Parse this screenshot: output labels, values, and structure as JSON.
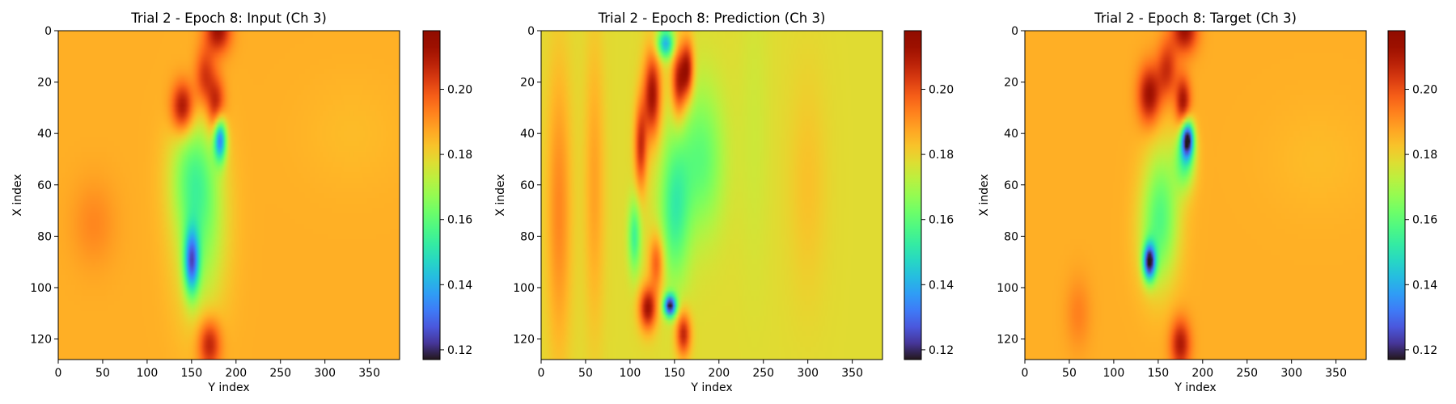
{
  "chart_data": [
    {
      "type": "heatmap",
      "title": "Trial 2 - Epoch 8: Input (Ch 3)",
      "xlabel": "Y index",
      "ylabel": "X index",
      "xlim": [
        0,
        384
      ],
      "ylim": [
        128,
        0
      ],
      "xticks": [
        "0",
        "50",
        "100",
        "150",
        "200",
        "250",
        "300",
        "350"
      ],
      "yticks": [
        "0",
        "20",
        "40",
        "60",
        "80",
        "100",
        "120"
      ],
      "colormap": "turbo",
      "colorbar": {
        "range": [
          0.117,
          0.218
        ],
        "ticks": [
          "0.12",
          "0.14",
          "0.16",
          "0.18",
          "0.20"
        ]
      },
      "background_value": 0.186,
      "features": [
        {
          "x": 180,
          "y": 0,
          "value": 0.212,
          "sx": 10,
          "sy": 6
        },
        {
          "x": 140,
          "y": 30,
          "value": 0.215,
          "sx": 9,
          "sy": 7
        },
        {
          "x": 178,
          "y": 30,
          "value": 0.21,
          "sx": 7,
          "sy": 8
        },
        {
          "x": 165,
          "y": 18,
          "value": 0.205,
          "sx": 8,
          "sy": 8
        },
        {
          "x": 182,
          "y": 42,
          "value": 0.135,
          "sx": 5,
          "sy": 6
        },
        {
          "x": 150,
          "y": 90,
          "value": 0.14,
          "sx": 6,
          "sy": 9
        },
        {
          "x": 160,
          "y": 75,
          "value": 0.165,
          "sx": 20,
          "sy": 25
        },
        {
          "x": 150,
          "y": 55,
          "value": 0.17,
          "sx": 18,
          "sy": 15
        },
        {
          "x": 170,
          "y": 122,
          "value": 0.21,
          "sx": 9,
          "sy": 7
        },
        {
          "x": 40,
          "y": 75,
          "value": 0.192,
          "sx": 18,
          "sy": 12
        },
        {
          "x": 330,
          "y": 40,
          "value": 0.184,
          "sx": 40,
          "sy": 15
        }
      ]
    },
    {
      "type": "heatmap",
      "title": "Trial 2 - Epoch 8: Prediction (Ch 3)",
      "xlabel": "Y index",
      "ylabel": "X index",
      "xlim": [
        0,
        384
      ],
      "ylim": [
        128,
        0
      ],
      "xticks": [
        "0",
        "50",
        "100",
        "150",
        "200",
        "250",
        "300",
        "350"
      ],
      "yticks": [
        "0",
        "20",
        "40",
        "60",
        "80",
        "100",
        "120"
      ],
      "colormap": "turbo",
      "colorbar": {
        "range": [
          0.117,
          0.218
        ],
        "ticks": [
          "0.12",
          "0.14",
          "0.16",
          "0.18",
          "0.20"
        ]
      },
      "background_value": 0.178,
      "features": [
        {
          "x": 140,
          "y": 5,
          "value": 0.14,
          "sx": 7,
          "sy": 4
        },
        {
          "x": 155,
          "y": 20,
          "value": 0.21,
          "sx": 6,
          "sy": 10
        },
        {
          "x": 125,
          "y": 25,
          "value": 0.212,
          "sx": 7,
          "sy": 12
        },
        {
          "x": 112,
          "y": 45,
          "value": 0.205,
          "sx": 5,
          "sy": 12
        },
        {
          "x": 165,
          "y": 15,
          "value": 0.208,
          "sx": 5,
          "sy": 8
        },
        {
          "x": 180,
          "y": 50,
          "value": 0.16,
          "sx": 18,
          "sy": 20
        },
        {
          "x": 105,
          "y": 80,
          "value": 0.155,
          "sx": 5,
          "sy": 10
        },
        {
          "x": 150,
          "y": 70,
          "value": 0.155,
          "sx": 12,
          "sy": 20
        },
        {
          "x": 145,
          "y": 107,
          "value": 0.118,
          "sx": 5,
          "sy": 3
        },
        {
          "x": 120,
          "y": 108,
          "value": 0.212,
          "sx": 7,
          "sy": 6
        },
        {
          "x": 160,
          "y": 118,
          "value": 0.208,
          "sx": 6,
          "sy": 6
        },
        {
          "x": 130,
          "y": 90,
          "value": 0.2,
          "sx": 6,
          "sy": 8
        },
        {
          "x": 20,
          "y": 70,
          "value": 0.192,
          "sx": 10,
          "sy": 40
        },
        {
          "x": 60,
          "y": 60,
          "value": 0.188,
          "sx": 8,
          "sy": 40
        },
        {
          "x": 240,
          "y": 40,
          "value": 0.175,
          "sx": 12,
          "sy": 40
        },
        {
          "x": 300,
          "y": 60,
          "value": 0.183,
          "sx": 15,
          "sy": 30
        }
      ]
    },
    {
      "type": "heatmap",
      "title": "Trial 2 - Epoch 8: Target (Ch 3)",
      "xlabel": "Y index",
      "ylabel": "X index",
      "xlim": [
        0,
        384
      ],
      "ylim": [
        128,
        0
      ],
      "xticks": [
        "0",
        "50",
        "100",
        "150",
        "200",
        "250",
        "300",
        "350"
      ],
      "yticks": [
        "0",
        "20",
        "40",
        "60",
        "80",
        "100",
        "120"
      ],
      "colormap": "turbo",
      "colorbar": {
        "range": [
          0.117,
          0.218
        ],
        "ticks": [
          "0.12",
          "0.14",
          "0.16",
          "0.18",
          "0.20"
        ]
      },
      "background_value": 0.186,
      "features": [
        {
          "x": 180,
          "y": 0,
          "value": 0.212,
          "sx": 10,
          "sy": 6
        },
        {
          "x": 140,
          "y": 25,
          "value": 0.213,
          "sx": 9,
          "sy": 8
        },
        {
          "x": 178,
          "y": 28,
          "value": 0.212,
          "sx": 6,
          "sy": 7
        },
        {
          "x": 160,
          "y": 15,
          "value": 0.205,
          "sx": 8,
          "sy": 8
        },
        {
          "x": 183,
          "y": 42,
          "value": 0.125,
          "sx": 5,
          "sy": 5
        },
        {
          "x": 180,
          "y": 50,
          "value": 0.16,
          "sx": 8,
          "sy": 8
        },
        {
          "x": 140,
          "y": 90,
          "value": 0.125,
          "sx": 5,
          "sy": 5
        },
        {
          "x": 150,
          "y": 80,
          "value": 0.165,
          "sx": 15,
          "sy": 15
        },
        {
          "x": 155,
          "y": 60,
          "value": 0.172,
          "sx": 15,
          "sy": 15
        },
        {
          "x": 175,
          "y": 122,
          "value": 0.21,
          "sx": 8,
          "sy": 7
        },
        {
          "x": 60,
          "y": 110,
          "value": 0.193,
          "sx": 10,
          "sy": 10
        },
        {
          "x": 330,
          "y": 50,
          "value": 0.184,
          "sx": 40,
          "sy": 15
        }
      ]
    }
  ]
}
